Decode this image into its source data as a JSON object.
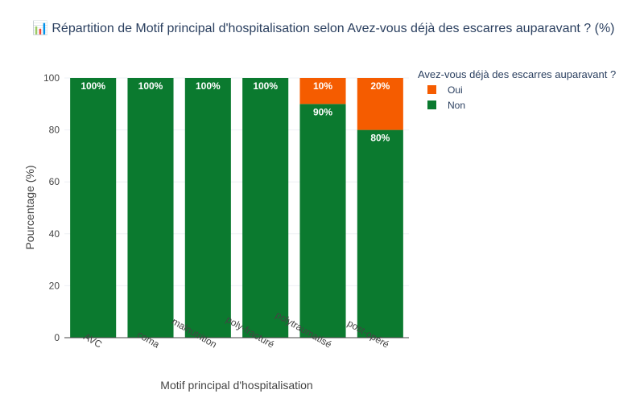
{
  "chart_data": {
    "type": "bar",
    "stacked": true,
    "title": "📊 Répartition de Motif principal d'hospitalisation selon Avez-vous déjà des escarres auparavant ? (%)",
    "xlabel": "Motif principal d'hospitalisation",
    "ylabel": "Pourcentage (%)",
    "ylim": [
      0,
      100
    ],
    "yticks": [
      0,
      20,
      40,
      60,
      80,
      100
    ],
    "grid": true,
    "categories": [
      "AVC",
      "coma",
      "malnutrition",
      "poly-fracturé",
      "polytraumatisé",
      "post-opéré"
    ],
    "series": [
      {
        "name": "Non",
        "color": "#0b7a2f",
        "values": [
          100,
          100,
          100,
          100,
          90,
          80
        ],
        "labels": [
          "100%",
          "100%",
          "100%",
          "100%",
          "90%",
          "80%"
        ]
      },
      {
        "name": "Oui",
        "color": "#f55c00",
        "values": [
          0,
          0,
          0,
          0,
          10,
          20
        ],
        "labels": [
          "",
          "",
          "",
          "",
          "10%",
          "20%"
        ]
      }
    ],
    "legend": {
      "title": "Avez-vous déjà des escarres auparavant ?",
      "placement": "right",
      "entries": [
        {
          "name": "Oui",
          "color": "#f55c00"
        },
        {
          "name": "Non",
          "color": "#0b7a2f"
        }
      ]
    }
  }
}
